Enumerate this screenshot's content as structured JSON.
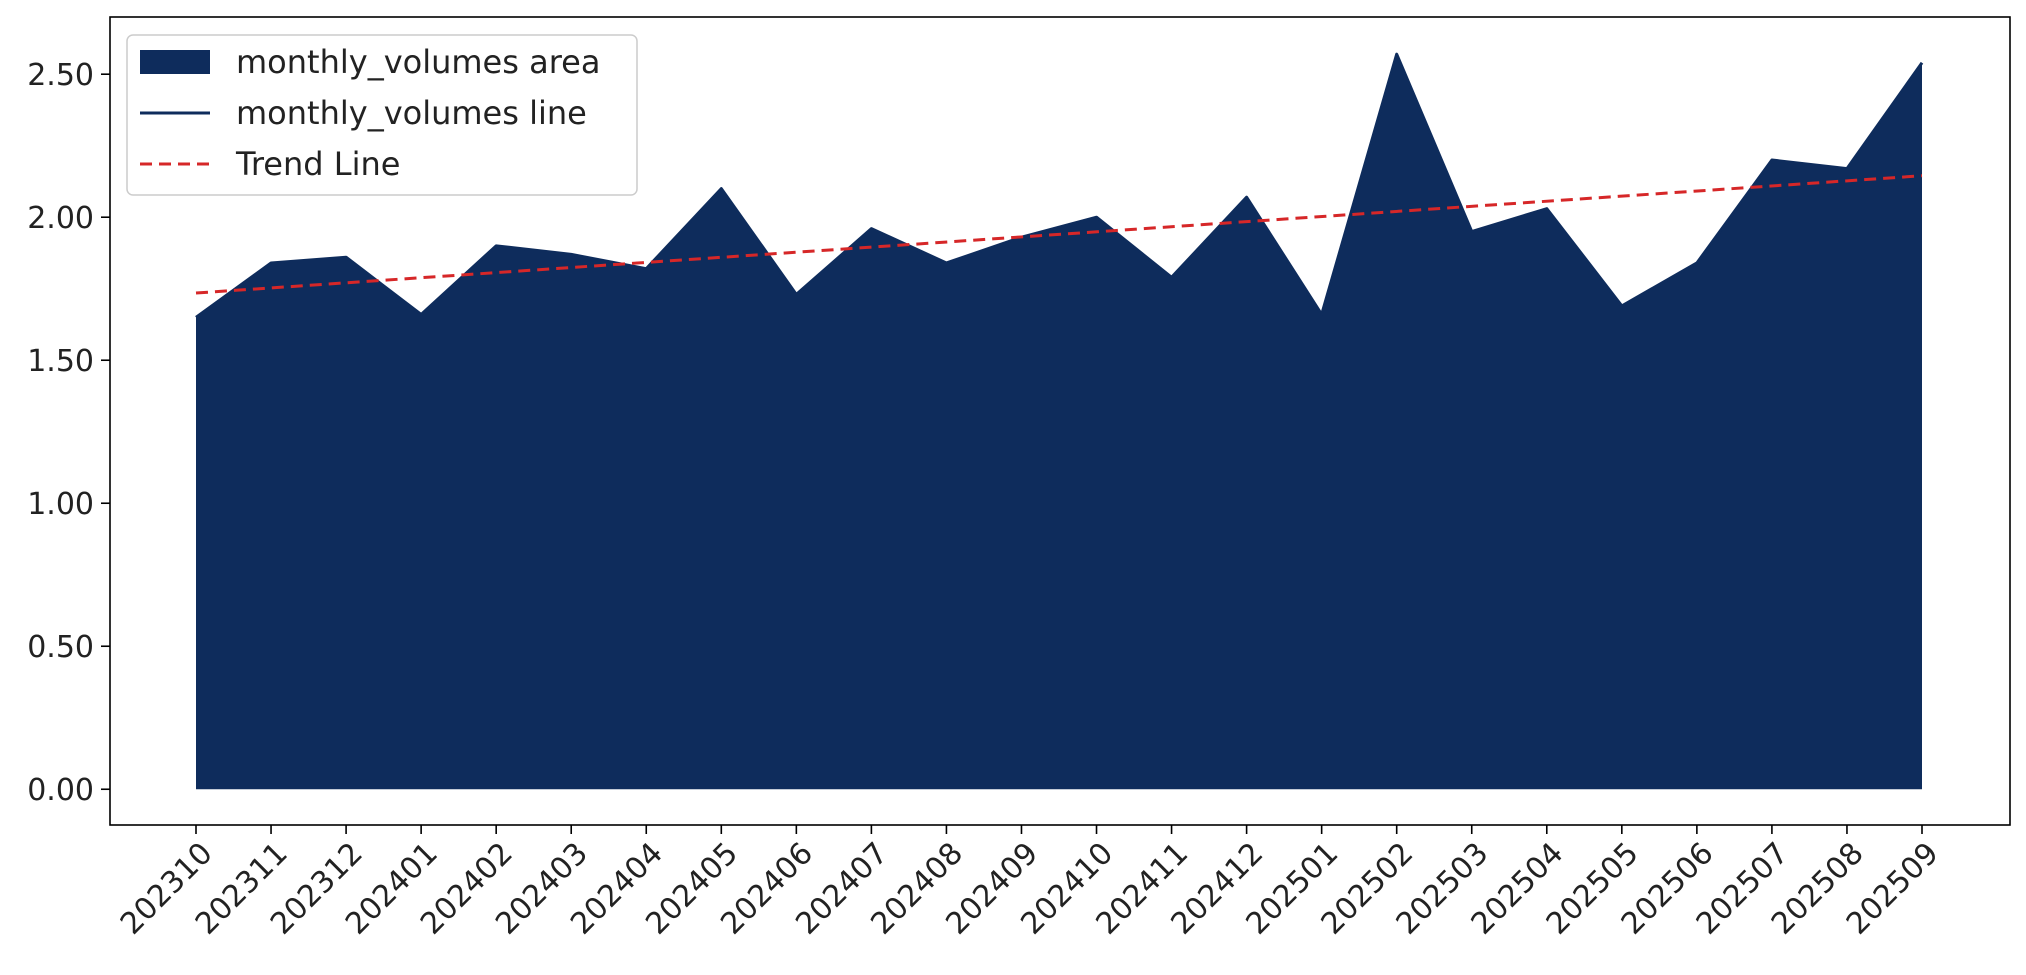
{
  "chart_data": {
    "type": "area",
    "title": "",
    "xlabel": "",
    "ylabel": "",
    "categories": [
      "202310",
      "202311",
      "202312",
      "202401",
      "202402",
      "202403",
      "202404",
      "202405",
      "202406",
      "202407",
      "202408",
      "202409",
      "202410",
      "202411",
      "202412",
      "202501",
      "202502",
      "202503",
      "202504",
      "202505",
      "202506",
      "202507",
      "202508",
      "202509"
    ],
    "series": [
      {
        "name": "monthly_volumes area",
        "kind": "area",
        "color": "#0e2c5c",
        "values": [
          1.65,
          1.84,
          1.86,
          1.66,
          1.9,
          1.87,
          1.82,
          2.1,
          1.73,
          1.96,
          1.84,
          1.93,
          2.0,
          1.79,
          2.07,
          1.66,
          2.57,
          1.95,
          2.03,
          1.69,
          1.84,
          2.2,
          2.17,
          2.54
        ]
      },
      {
        "name": "monthly_volumes line",
        "kind": "line",
        "color": "#0e2c5c",
        "values": [
          1.65,
          1.84,
          1.86,
          1.66,
          1.9,
          1.87,
          1.82,
          2.1,
          1.73,
          1.96,
          1.84,
          1.93,
          2.0,
          1.79,
          2.07,
          1.66,
          2.57,
          1.95,
          2.03,
          1.69,
          1.84,
          2.2,
          2.17,
          2.54
        ]
      },
      {
        "name": "Trend Line",
        "kind": "dashed-line",
        "color": "#d62728",
        "start": 1.735,
        "end": 2.145
      }
    ],
    "ylim": [
      -0.125,
      2.7
    ],
    "yticks": [
      "0.00",
      "0.50",
      "1.00",
      "1.50",
      "2.00",
      "2.50"
    ],
    "ytick_values": [
      0,
      0.5,
      1.0,
      1.5,
      2.0,
      2.5
    ],
    "legend_position": "top-left",
    "grid": false
  }
}
